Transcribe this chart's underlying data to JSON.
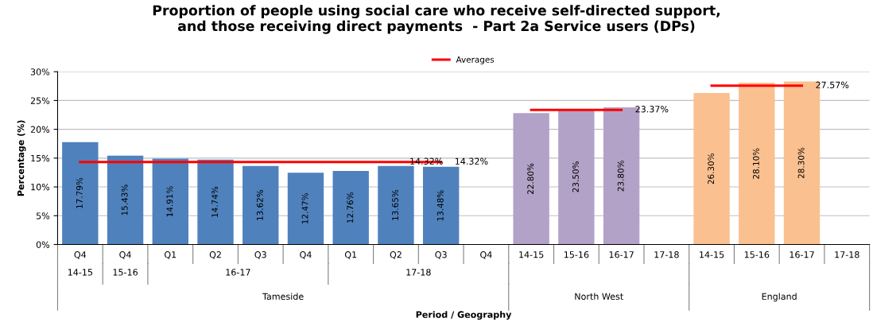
{
  "chart_data": {
    "type": "bar",
    "title": "Proportion of people using social care who receive self-directed support,\nand those receiving direct payments  - Part 2a Service users (DPs)",
    "ylabel": "Percentage (%)",
    "categories": [
      "Q4",
      "Q4",
      "Q1",
      "Q2",
      "Q3",
      "Q4",
      "Q1",
      "Q2",
      "Q3",
      "Q4",
      "14-15",
      "15-16",
      "16-17",
      "17-18",
      "14-15",
      "15-16",
      "16-17",
      "17-18"
    ],
    "series": [
      {
        "colors": [
          "#4f81bd",
          "#4f81bd",
          "#4f81bd",
          "#4f81bd",
          "#4f81bd",
          "#4f81bd",
          "#4f81bd",
          "#4f81bd",
          "#4f81bd",
          "#4f81bd",
          "#b3a2c7",
          "#b3a2c7",
          "#b3a2c7",
          "#b3a2c7",
          "#fac090",
          "#fac090",
          "#fac090",
          "#fac090"
        ],
        "values": [
          17.79,
          15.43,
          14.91,
          14.74,
          13.62,
          12.47,
          12.76,
          13.65,
          13.48,
          null,
          22.8,
          23.5,
          23.8,
          null,
          26.3,
          28.1,
          28.3,
          null
        ],
        "value_labels": [
          "17.79%",
          "15.43%",
          "14.91%",
          "14.74%",
          "13.62%",
          "12.47%",
          "12.76%",
          "13.65%",
          "13.48%",
          null,
          "22.80%",
          "23.50%",
          "23.80%",
          null,
          "26.30%",
          "28.10%",
          "28.30%",
          null
        ]
      },
      {
        "type": "line",
        "name": "Averages",
        "color": "#ff0000",
        "values": [
          14.32,
          14.32,
          14.32,
          14.32,
          14.32,
          14.32,
          14.32,
          14.32,
          14.32,
          null,
          23.37,
          23.37,
          23.37,
          null,
          27.57,
          27.57,
          27.57,
          null
        ],
        "value_labels": [
          null,
          null,
          null,
          null,
          null,
          null,
          null,
          "14.32%",
          "14.32%",
          null,
          null,
          null,
          "23.37%",
          null,
          null,
          null,
          "27.57%",
          null
        ]
      }
    ],
    "ylim": [
      0,
      30
    ],
    "yticks": [
      {
        "value": 0,
        "label": "0%"
      },
      {
        "value": 5,
        "label": "5%"
      },
      {
        "value": 10,
        "label": "10%"
      },
      {
        "value": 15,
        "label": "15%"
      },
      {
        "value": 20,
        "label": "20%"
      },
      {
        "value": 25,
        "label": "25%"
      },
      {
        "value": 30,
        "label": "30%"
      }
    ],
    "grid": "y",
    "legend": "top",
    "annotations": [
      "14-15",
      "15-16",
      "16-17",
      "17-18",
      "Tameside",
      "North West",
      "England",
      "Period / Geography"
    ]
  }
}
